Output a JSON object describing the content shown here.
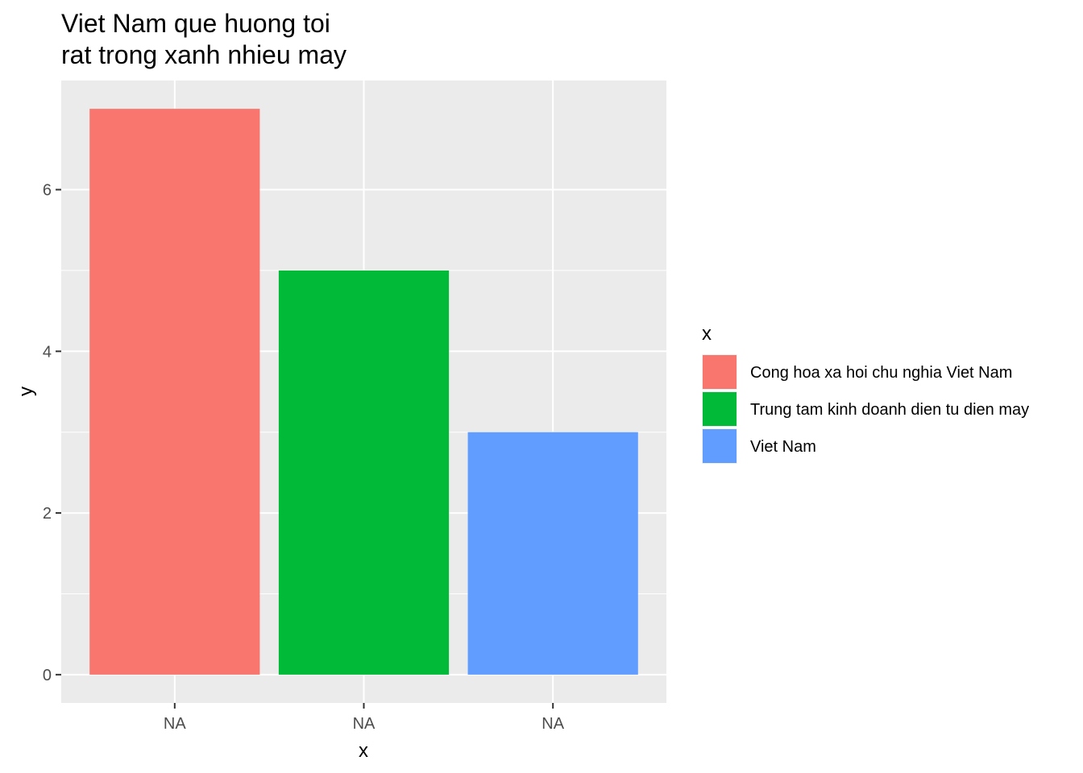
{
  "chart_data": {
    "type": "bar",
    "title_lines": [
      "Viet Nam que huong toi",
      "rat trong xanh nhieu may"
    ],
    "xlabel": "x",
    "ylabel": "y",
    "categories": [
      "NA",
      "NA",
      "NA"
    ],
    "values": [
      7,
      5,
      3
    ],
    "series_labels": [
      "Cong hoa xa hoi chu nghia Viet Nam",
      "Trung tam kinh doanh dien tu dien may",
      "Viet Nam"
    ],
    "colors": [
      "#F8766D",
      "#00BA38",
      "#619CFF"
    ],
    "ylim": [
      -0.35,
      7.35
    ],
    "y_ticks": [
      0,
      2,
      4,
      6
    ],
    "y_tick_labels": [
      "0",
      "2",
      "4",
      "6"
    ],
    "grid": true,
    "panel_background": "#EBEBEB",
    "grid_color": "#FFFFFF",
    "legend": {
      "title": "x",
      "position": "right",
      "labels": [
        "Cong hoa xa hoi chu nghia Viet Nam",
        "Trung tam kinh doanh dien tu dien may",
        "Viet Nam"
      ]
    }
  }
}
